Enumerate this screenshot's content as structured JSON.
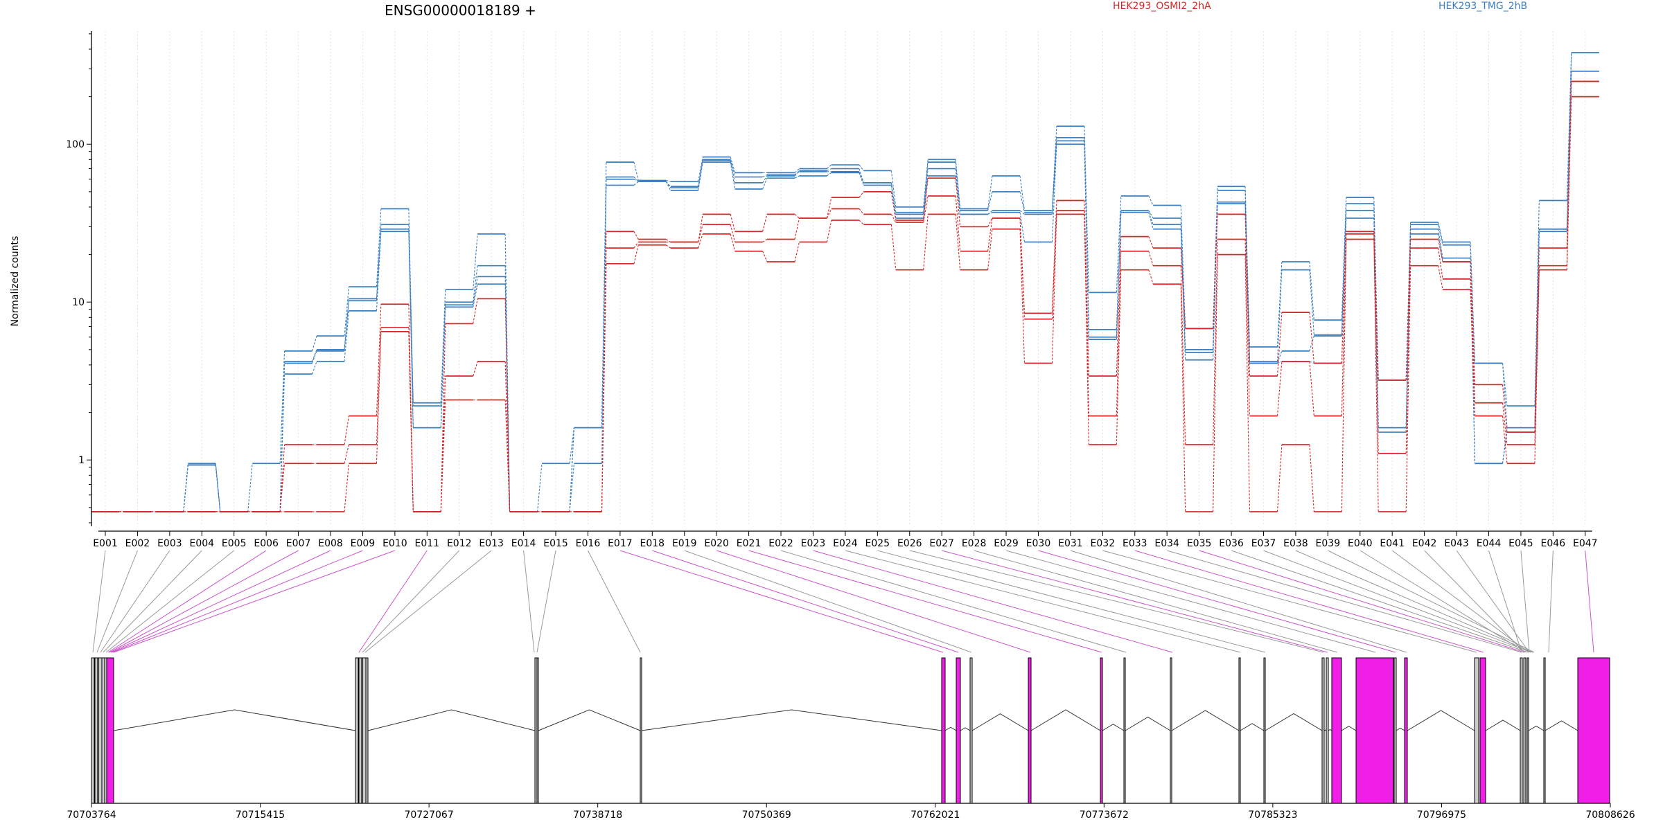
{
  "chart_data": {
    "type": "line",
    "title": "ENSG00000018189 +",
    "ylabel": "Normalized counts",
    "yscale": "log",
    "ylim": [
      0.38,
      520
    ],
    "yticks": [
      "1",
      "10",
      "100"
    ],
    "ytick_values": [
      1,
      10,
      100
    ],
    "legend": [
      {
        "name": "HEK293_OSMI2_2hA",
        "color": "#d62728"
      },
      {
        "name": "HEK293_TMG_2hB",
        "color": "#3a7fc1"
      }
    ],
    "categories": [
      "E001",
      "E002",
      "E003",
      "E004",
      "E005",
      "E006",
      "E007",
      "E008",
      "E009",
      "E010",
      "E011",
      "E012",
      "E013",
      "E014",
      "E015",
      "E016",
      "E017",
      "E018",
      "E019",
      "E020",
      "E021",
      "E022",
      "E023",
      "E024",
      "E025",
      "E026",
      "E027",
      "E028",
      "E029",
      "E030",
      "E031",
      "E032",
      "E033",
      "E034",
      "E035",
      "E036",
      "E037",
      "E038",
      "E039",
      "E040",
      "E041",
      "E042",
      "E043",
      "E044",
      "E045",
      "E046",
      "E047"
    ],
    "series": [
      {
        "group": "blue",
        "color": "#3a7fc1",
        "values": [
          0.47,
          0.47,
          0.47,
          0.95,
          0.47,
          0.95,
          4.9,
          6.1,
          12.5,
          39,
          2.3,
          12,
          27,
          0.47,
          0.95,
          1.6,
          77,
          59,
          58,
          83,
          66,
          66,
          70,
          74,
          68,
          40,
          80,
          39,
          63,
          38,
          130,
          11.5,
          47,
          41,
          6.8,
          54,
          5.2,
          18,
          7.7,
          46,
          3.2,
          32,
          24,
          4.1,
          2.2,
          44,
          380
        ]
      },
      {
        "group": "blue",
        "color": "#3a7fc1",
        "values": [
          0.47,
          0.47,
          0.47,
          0.93,
          0.47,
          0.47,
          4.2,
          5.0,
          10.5,
          31,
          2.2,
          10,
          17,
          0.47,
          0.47,
          1.6,
          62,
          58,
          54,
          80,
          62,
          64,
          68,
          70,
          57,
          37,
          77,
          38,
          50,
          37,
          110,
          6.7,
          38,
          34,
          5.0,
          51,
          4.2,
          16,
          6.2,
          42,
          1.6,
          31,
          23,
          4.1,
          1.6,
          29,
          290
        ]
      },
      {
        "group": "blue",
        "color": "#3a7fc1",
        "values": [
          0.47,
          0.47,
          0.47,
          0.93,
          0.47,
          0.47,
          4.1,
          4.9,
          10.2,
          29,
          1.6,
          9.6,
          14.5,
          0.47,
          0.47,
          1.6,
          60,
          58,
          53,
          79,
          57,
          63,
          67,
          67,
          57,
          36,
          70,
          36,
          38,
          36,
          105,
          6.0,
          37,
          31,
          4.8,
          43,
          4.1,
          4.9,
          6.1,
          38,
          1.6,
          29,
          19,
          0.95,
          1.6,
          29,
          380
        ]
      },
      {
        "group": "blue",
        "color": "#3a7fc1",
        "values": [
          0.47,
          0.47,
          0.47,
          0.93,
          0.47,
          0.47,
          3.5,
          4.2,
          8.8,
          28,
          1.6,
          9.3,
          13,
          0.47,
          0.47,
          0.95,
          55,
          58,
          51,
          77,
          52,
          61,
          63,
          66,
          55,
          34,
          63,
          36,
          37,
          24,
          100,
          5.8,
          37,
          29,
          4.3,
          42,
          4.1,
          4.2,
          4.1,
          34,
          1.5,
          27,
          18,
          0.95,
          1.5,
          28,
          290
        ]
      },
      {
        "group": "red",
        "color": "#d62728",
        "values": [
          0.47,
          0.47,
          0.47,
          0.47,
          0.47,
          0.47,
          1.25,
          1.25,
          1.9,
          9.7,
          0.47,
          7.3,
          10.5,
          0.47,
          0.47,
          0.47,
          28,
          25,
          24,
          36,
          28,
          36,
          34,
          46,
          50,
          33,
          61,
          30,
          34,
          8.5,
          44,
          3.4,
          26,
          22,
          6.8,
          36,
          3.4,
          8.6,
          4.1,
          28,
          3.2,
          25,
          18,
          3.0,
          1.5,
          22,
          250
        ]
      },
      {
        "group": "red",
        "color": "#d62728",
        "values": [
          0.47,
          0.47,
          0.47,
          0.47,
          0.47,
          0.47,
          0.95,
          0.95,
          1.25,
          6.9,
          0.47,
          3.4,
          4.2,
          0.47,
          0.47,
          0.47,
          22,
          24,
          24,
          31,
          24,
          25,
          34,
          39,
          36,
          32,
          47,
          21,
          34,
          7.8,
          38,
          1.9,
          21,
          17,
          1.25,
          25,
          1.9,
          4.2,
          1.9,
          27,
          1.1,
          22,
          14,
          2.3,
          1.25,
          17,
          250
        ]
      },
      {
        "group": "red",
        "color": "#d62728",
        "values": [
          0.47,
          0.47,
          0.47,
          0.47,
          0.47,
          0.47,
          0.47,
          0.47,
          0.95,
          6.5,
          0.47,
          2.4,
          2.4,
          0.47,
          0.47,
          0.47,
          17.5,
          23,
          22,
          27,
          21,
          18,
          24,
          33,
          31,
          16,
          36,
          16,
          29,
          4.1,
          36,
          1.25,
          16,
          13,
          0.47,
          20,
          0.47,
          1.25,
          0.47,
          25,
          0.47,
          17,
          12,
          1.9,
          0.95,
          16,
          200
        ]
      }
    ],
    "structure": {
      "coordinates": [
        "70703764",
        "70715415",
        "70727067",
        "70738718",
        "70750369",
        "70762021",
        "70773672",
        "70785323",
        "70796975",
        "70808626"
      ]
    }
  }
}
